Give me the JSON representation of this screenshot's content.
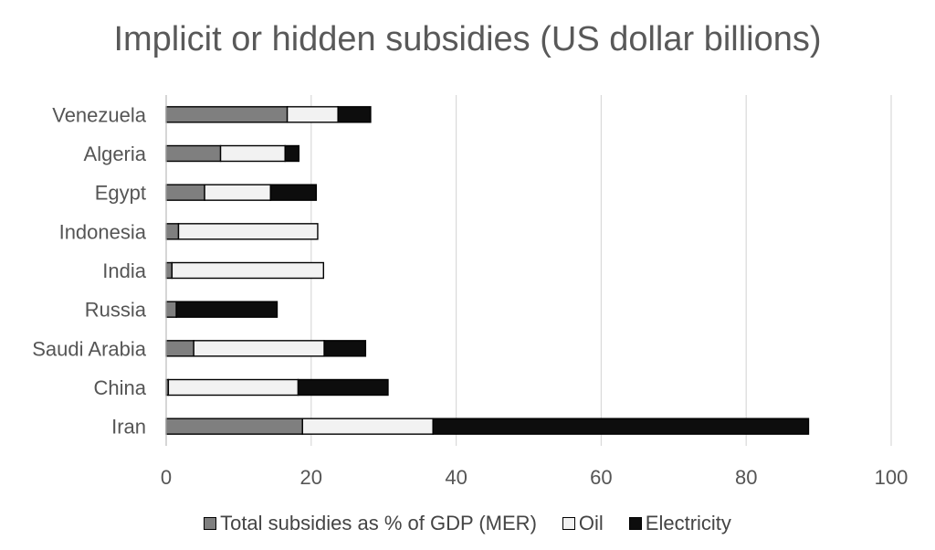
{
  "chart_data": {
    "type": "bar",
    "orientation": "horizontal",
    "stacked": true,
    "title": "Implicit or hidden subsidies (US dollar billions)",
    "categories": [
      "Venezuela",
      "Algeria",
      "Egypt",
      "Indonesia",
      "India",
      "Russia",
      "Saudi Arabia",
      "China",
      "Iran"
    ],
    "series": [
      {
        "name": "Total subsidies as % of GDP (MER)",
        "color": "#7f7f7f",
        "values": [
          16.7,
          7.5,
          5.3,
          1.7,
          0.8,
          1.4,
          3.8,
          0.3,
          18.8
        ]
      },
      {
        "name": "Oil",
        "color": "#f2f2f2",
        "values": [
          7.0,
          8.9,
          9.1,
          19.2,
          20.9,
          0.0,
          18.0,
          17.9,
          18.0
        ]
      },
      {
        "name": "Electricity",
        "color": "#0d0d0d",
        "values": [
          4.5,
          1.9,
          6.3,
          0.0,
          0.0,
          13.9,
          5.7,
          12.4,
          51.8
        ]
      }
    ],
    "xlim": [
      0,
      100
    ],
    "xticks": [
      0,
      20,
      40,
      60,
      80,
      100
    ],
    "grid": true,
    "legend_position": "bottom"
  }
}
